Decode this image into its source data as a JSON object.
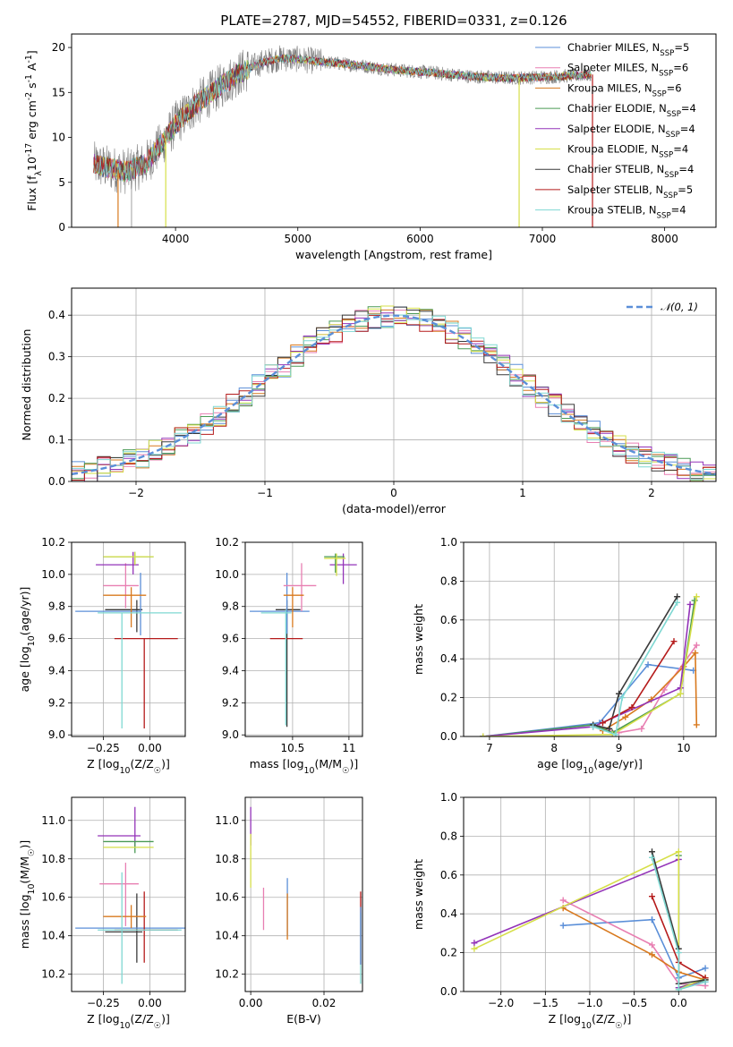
{
  "chart_data": [
    {
      "id": "spectrum",
      "type": "line",
      "title": "PLATE=2787, MJD=54552, FIBERID=0331, z=0.126",
      "xlabel": "wavelength [Angstrom, rest frame]",
      "ylabel": "Flux [f$_\\lambda$10$^{-17}$ erg cm$^{-2}$ s$^{-1}$ A$^{-1}$]",
      "xlim": [
        3150,
        8420
      ],
      "ylim": [
        0,
        21.5
      ],
      "xticks": [
        4000,
        5000,
        6000,
        7000,
        8000
      ],
      "yticks": [
        0,
        5,
        10,
        15,
        20
      ],
      "grid": false,
      "legend_position": "upper right",
      "continuum_profile": {
        "x": [
          3330,
          3450,
          3600,
          3750,
          3900,
          4000,
          4150,
          4300,
          4500,
          4700,
          4850,
          5000,
          5200,
          5500,
          5800,
          6100,
          6400,
          6700,
          7000,
          7300,
          7400
        ],
        "y": [
          7.0,
          6.6,
          6.2,
          7.0,
          9.5,
          11.5,
          13.5,
          15.0,
          17.0,
          18.3,
          18.8,
          18.7,
          18.4,
          18.0,
          17.5,
          17.2,
          16.8,
          16.6,
          16.7,
          16.9,
          17.0
        ]
      },
      "series": [
        {
          "name": "Chabrier MILES, N$_{SSP}$=5",
          "color": "#5b8fd8"
        },
        {
          "name": "Salpeter MILES, N$_{SSP}$=6",
          "color": "#e87fb2"
        },
        {
          "name": "Kroupa MILES, N$_{SSP}$=6",
          "color": "#d8791e"
        },
        {
          "name": "Chabrier ELODIE, N$_{SSP}$=4",
          "color": "#4a9a55"
        },
        {
          "name": "Salpeter ELODIE, N$_{SSP}$=4",
          "color": "#9333b8"
        },
        {
          "name": "Kroupa ELODIE, N$_{SSP}$=4",
          "color": "#d6df49"
        },
        {
          "name": "Chabrier STELIB, N$_{SSP}$=4",
          "color": "#3a3a3a"
        },
        {
          "name": "Salpeter STELIB, N$_{SSP}$=5",
          "color": "#b51b1b"
        },
        {
          "name": "Kroupa STELIB, N$_{SSP}$=4",
          "color": "#7fd8d2"
        }
      ],
      "data_color": "#7f7f7f",
      "drop_lines": [
        {
          "x": 3530,
          "color": "#d8791e"
        },
        {
          "x": 3640,
          "color": "#b0b0b0"
        },
        {
          "x": 3920,
          "color": "#d6df49"
        },
        {
          "x": 6810,
          "color": "#d6df49"
        },
        {
          "x": 7410,
          "color": "#b51b1b"
        }
      ]
    },
    {
      "id": "residuals",
      "type": "line",
      "xlabel": "(data-model)/error",
      "ylabel": "Normed distribution",
      "xlim": [
        -2.5,
        2.5
      ],
      "ylim": [
        0,
        0.465
      ],
      "xticks": [
        -2,
        -1,
        0,
        1,
        2
      ],
      "yticks": [
        0.0,
        0.1,
        0.2,
        0.3,
        0.4
      ],
      "grid": true,
      "legend": "$\\mathcal{N}(0, 1)$",
      "legend_position": "upper right",
      "gaussian": {
        "mean": 0,
        "sigma": 1,
        "color": "#5b8fd8"
      },
      "histogram": {
        "bin_start": -2.5,
        "bin_width": 0.1,
        "jitter": 0.028
      }
    },
    {
      "id": "age-vs-Z",
      "type": "scatter",
      "xlabel": "Z [log$_{10}$(Z/Z$_\\odot$)]",
      "ylabel": "age  [log$_{10}$(age/yr)]",
      "xlim": [
        -0.42,
        0.19
      ],
      "ylim": [
        8.99,
        10.2
      ],
      "xticks": [
        -0.25,
        0.0
      ],
      "xticklabels": [
        "−0.25",
        "0.00"
      ],
      "yticks": [
        9.0,
        9.2,
        9.4,
        9.6,
        9.8,
        10.0,
        10.2
      ],
      "grid": true,
      "points": [
        {
          "x": -0.07,
          "y": 9.78,
          "xerr": [
            0.17,
            0.03
          ],
          "yerr": [
            0.14,
            0.06
          ],
          "color": "#3a3a3a"
        },
        {
          "x": -0.05,
          "y": 9.77,
          "xerr": [
            0.35,
            0.0
          ],
          "yerr": [
            0.15,
            0.24
          ],
          "color": "#5b8fd8"
        },
        {
          "x": -0.03,
          "y": 9.6,
          "xerr": [
            0.16,
            0.18
          ],
          "yerr": [
            0.56,
            0.0
          ],
          "color": "#b51b1b"
        },
        {
          "x": -0.13,
          "y": 9.93,
          "xerr": [
            0.12,
            0.07
          ],
          "yerr": [
            0.14,
            0.14
          ],
          "color": "#e87fb2"
        },
        {
          "x": -0.1,
          "y": 9.87,
          "xerr": [
            0.15,
            0.08
          ],
          "yerr": [
            0.2,
            0.05
          ],
          "color": "#d8791e"
        },
        {
          "x": -0.09,
          "y": 10.06,
          "xerr": [
            0.2,
            0.03
          ],
          "yerr": [
            0.06,
            0.08
          ],
          "color": "#9333b8"
        },
        {
          "x": -0.08,
          "y": 10.11,
          "xerr": [
            0.17,
            0.1
          ],
          "yerr": [
            0.05,
            0.03
          ],
          "color": "#4a9a55"
        },
        {
          "x": -0.08,
          "y": 10.11,
          "xerr": [
            0.17,
            0.1
          ],
          "yerr": [
            0.05,
            0.03
          ],
          "color": "#d6df49"
        },
        {
          "x": -0.15,
          "y": 9.76,
          "xerr": [
            0.13,
            0.32
          ],
          "yerr": [
            0.72,
            0.0
          ],
          "color": "#7fd8d2"
        }
      ]
    },
    {
      "id": "age-vs-mass",
      "type": "scatter",
      "xlabel": "mass [log$_{10}$(M/M$_\\odot$)]",
      "ylabel": "",
      "xlim": [
        10.08,
        11.12
      ],
      "ylim": [
        8.99,
        10.2
      ],
      "xticks": [
        10.5,
        11.0
      ],
      "yticks": [
        9.0,
        9.2,
        9.4,
        9.6,
        9.8,
        10.0,
        10.2
      ],
      "grid": true,
      "points": [
        {
          "x": 10.45,
          "y": 9.78,
          "xerr": [
            0.1,
            0.12
          ],
          "yerr": [
            0.73,
            0.06
          ],
          "color": "#3a3a3a"
        },
        {
          "x": 10.45,
          "y": 9.77,
          "xerr": [
            0.33,
            0.2
          ],
          "yerr": [
            0.14,
            0.24
          ],
          "color": "#5b8fd8"
        },
        {
          "x": 10.44,
          "y": 9.6,
          "xerr": [
            0.14,
            0.15
          ],
          "yerr": [
            0.0,
            0.0
          ],
          "color": "#b51b1b"
        },
        {
          "x": 10.58,
          "y": 9.93,
          "xerr": [
            0.16,
            0.13
          ],
          "yerr": [
            0.16,
            0.14
          ],
          "color": "#e87fb2"
        },
        {
          "x": 10.5,
          "y": 9.87,
          "xerr": [
            0.08,
            0.1
          ],
          "yerr": [
            0.2,
            0.05
          ],
          "color": "#d8791e"
        },
        {
          "x": 10.95,
          "y": 10.06,
          "xerr": [
            0.12,
            0.12
          ],
          "yerr": [
            0.12,
            0.07
          ],
          "color": "#9333b8"
        },
        {
          "x": 10.88,
          "y": 10.11,
          "xerr": [
            0.1,
            0.08
          ],
          "yerr": [
            0.1,
            0.02
          ],
          "color": "#4a9a55"
        },
        {
          "x": 10.89,
          "y": 10.1,
          "xerr": [
            0.11,
            0.08
          ],
          "yerr": [
            0.11,
            0.03
          ],
          "color": "#d6df49"
        },
        {
          "x": 10.44,
          "y": 9.76,
          "xerr": [
            0.22,
            0.05
          ],
          "yerr": [
            0.7,
            0.02
          ],
          "color": "#7fd8d2"
        }
      ]
    },
    {
      "id": "weight-vs-age",
      "type": "line",
      "xlabel": "age  [log$_{10}$(age/yr)]",
      "ylabel": "mass weight",
      "xlim": [
        6.6,
        10.5
      ],
      "ylim": [
        0,
        1.0
      ],
      "xticks": [
        7,
        8,
        9,
        10
      ],
      "yticks": [
        0.0,
        0.2,
        0.4,
        0.6,
        0.8,
        1.0
      ],
      "grid": true,
      "series": [
        {
          "color": "#5b8fd8",
          "x": [
            6.9,
            8.7,
            9.45,
            10.15
          ],
          "y": [
            0.0,
            0.07,
            0.37,
            0.34
          ]
        },
        {
          "color": "#e87fb2",
          "x": [
            8.7,
            9.0,
            9.35,
            9.7,
            10.2
          ],
          "y": [
            0.05,
            0.02,
            0.04,
            0.24,
            0.47
          ]
        },
        {
          "color": "#d8791e",
          "x": [
            8.75,
            9.1,
            9.5,
            10.0,
            10.18,
            10.2
          ],
          "y": [
            0.03,
            0.1,
            0.19,
            0.36,
            0.43,
            0.06
          ]
        },
        {
          "color": "#4a9a55",
          "x": [
            6.9,
            8.6,
            8.9,
            9.95,
            10.17
          ],
          "y": [
            0.0,
            0.06,
            0.02,
            0.22,
            0.7
          ]
        },
        {
          "color": "#9333b8",
          "x": [
            6.9,
            8.6,
            9.95,
            10.1
          ],
          "y": [
            0.0,
            0.05,
            0.25,
            0.68
          ]
        },
        {
          "color": "#d6df49",
          "x": [
            6.9,
            8.9,
            9.95,
            10.2
          ],
          "y": [
            0.0,
            0.01,
            0.22,
            0.72
          ]
        },
        {
          "color": "#3a3a3a",
          "x": [
            8.6,
            8.85,
            9.0,
            9.9
          ],
          "y": [
            0.06,
            0.04,
            0.22,
            0.72
          ]
        },
        {
          "color": "#b51b1b",
          "x": [
            8.75,
            9.2,
            9.85
          ],
          "y": [
            0.07,
            0.15,
            0.49
          ]
        },
        {
          "color": "#7fd8d2",
          "x": [
            8.6,
            8.95,
            9.05,
            9.9
          ],
          "y": [
            0.05,
            0.01,
            0.2,
            0.69
          ]
        }
      ]
    },
    {
      "id": "mass-vs-Z",
      "type": "scatter",
      "xlabel": "Z [log$_{10}$(Z/Z$_\\odot$)]",
      "ylabel": "mass [log$_{10}$(M/M$_\\odot$)]",
      "xlim": [
        -0.42,
        0.19
      ],
      "ylim": [
        10.11,
        11.12
      ],
      "xticks": [
        -0.25,
        0.0
      ],
      "xticklabels": [
        "−0.25",
        "0.00"
      ],
      "yticks": [
        10.2,
        10.4,
        10.6,
        10.8,
        11.0
      ],
      "grid": true,
      "points": [
        {
          "x": -0.07,
          "y": 10.42,
          "xerr": [
            0.17,
            0.03
          ],
          "yerr": [
            0.16,
            0.2
          ],
          "color": "#3a3a3a"
        },
        {
          "x": -0.05,
          "y": 10.44,
          "xerr": [
            0.35,
            0.3
          ],
          "yerr": [
            0.0,
            0.0
          ],
          "color": "#5b8fd8"
        },
        {
          "x": -0.03,
          "y": 10.43,
          "xerr": [
            0.16,
            0.18
          ],
          "yerr": [
            0.17,
            0.2
          ],
          "color": "#b51b1b"
        },
        {
          "x": -0.13,
          "y": 10.67,
          "xerr": [
            0.14,
            0.07
          ],
          "yerr": [
            0.22,
            0.11
          ],
          "color": "#e87fb2"
        },
        {
          "x": -0.1,
          "y": 10.5,
          "xerr": [
            0.15,
            0.08
          ],
          "yerr": [
            0.06,
            0.06
          ],
          "color": "#d8791e"
        },
        {
          "x": -0.08,
          "y": 10.92,
          "xerr": [
            0.2,
            0.03
          ],
          "yerr": [
            0.06,
            0.15
          ],
          "color": "#9333b8"
        },
        {
          "x": -0.08,
          "y": 10.89,
          "xerr": [
            0.17,
            0.1
          ],
          "yerr": [
            0.06,
            0.0
          ],
          "color": "#4a9a55"
        },
        {
          "x": -0.08,
          "y": 10.86,
          "xerr": [
            0.17,
            0.1
          ],
          "yerr": [
            0.0,
            0.0
          ],
          "color": "#d6df49"
        },
        {
          "x": -0.15,
          "y": 10.43,
          "xerr": [
            0.13,
            0.32
          ],
          "yerr": [
            0.28,
            0.3
          ],
          "color": "#7fd8d2"
        }
      ]
    },
    {
      "id": "mass-vs-EBV",
      "type": "scatter",
      "xlabel": "E(B-V)",
      "ylabel": "",
      "xlim": [
        -0.0015,
        0.0305
      ],
      "ylim": [
        10.11,
        11.12
      ],
      "xticks": [
        0.0,
        0.02
      ],
      "xticklabels": [
        "0.00",
        "0.02"
      ],
      "yticks": [
        10.2,
        10.4,
        10.6,
        10.8,
        11.0
      ],
      "grid": true,
      "points": [
        {
          "x": 0.0,
          "y": 10.97,
          "yerr": [
            0.1,
            0.1
          ],
          "color": "#9333b8"
        },
        {
          "x": 0.0,
          "y": 10.8,
          "yerr": [
            0.15,
            0.13
          ],
          "color": "#d6df49"
        },
        {
          "x": 0.0035,
          "y": 10.55,
          "yerr": [
            0.12,
            0.1
          ],
          "color": "#e87fb2"
        },
        {
          "x": 0.01,
          "y": 10.55,
          "yerr": [
            0.15,
            0.15
          ],
          "color": "#5b8fd8"
        },
        {
          "x": 0.01,
          "y": 10.5,
          "yerr": [
            0.12,
            0.12
          ],
          "color": "#d8791e"
        },
        {
          "x": 0.03,
          "y": 10.45,
          "yerr": [
            0.2,
            0.18
          ],
          "color": "#b51b1b"
        },
        {
          "x": 0.03,
          "y": 10.3,
          "yerr": [
            0.15,
            0.22
          ],
          "color": "#7fd8d2"
        },
        {
          "x": 0.03,
          "y": 10.4,
          "yerr": [
            0.15,
            0.15
          ],
          "color": "#5b8fd8"
        }
      ]
    },
    {
      "id": "weight-vs-Z",
      "type": "line",
      "xlabel": "Z [log$_{10}$(Z/Z$_\\odot$)]",
      "ylabel": "mass weight",
      "xlim": [
        -2.42,
        0.42
      ],
      "ylim": [
        0,
        1.0
      ],
      "xticks": [
        -2.0,
        -1.5,
        -1.0,
        -0.5,
        0.0
      ],
      "xticklabels": [
        "−2.0",
        "−1.5",
        "−1.0",
        "−0.5",
        "0.0"
      ],
      "yticks": [
        0.0,
        0.2,
        0.4,
        0.6,
        0.8,
        1.0
      ],
      "grid": true,
      "series": [
        {
          "color": "#5b8fd8",
          "x": [
            -1.3,
            -0.3,
            -0.3,
            0.0,
            0.3
          ],
          "y": [
            0.34,
            0.37,
            0.37,
            0.07,
            0.12
          ]
        },
        {
          "color": "#e87fb2",
          "x": [
            -1.3,
            -0.3,
            0.0,
            0.3
          ],
          "y": [
            0.47,
            0.24,
            0.04,
            0.03
          ]
        },
        {
          "color": "#d8791e",
          "x": [
            -1.3,
            -0.3,
            0.0,
            0.3
          ],
          "y": [
            0.43,
            0.19,
            0.1,
            0.06
          ]
        },
        {
          "color": "#4a9a55",
          "x": [
            0.0,
            0.0,
            0.3
          ],
          "y": [
            0.7,
            0.02,
            0.06
          ]
        },
        {
          "color": "#9333b8",
          "x": [
            -2.3,
            0.0,
            0.0,
            0.3
          ],
          "y": [
            0.25,
            0.68,
            0.02,
            0.05
          ]
        },
        {
          "color": "#d6df49",
          "x": [
            -2.3,
            0.0,
            0.0,
            0.3
          ],
          "y": [
            0.22,
            0.72,
            0.01,
            0.07
          ]
        },
        {
          "color": "#3a3a3a",
          "x": [
            -0.3,
            0.0,
            0.0,
            0.3
          ],
          "y": [
            0.72,
            0.22,
            0.04,
            0.06
          ]
        },
        {
          "color": "#b51b1b",
          "x": [
            -0.3,
            0.0,
            0.3
          ],
          "y": [
            0.49,
            0.15,
            0.07
          ]
        },
        {
          "color": "#7fd8d2",
          "x": [
            -0.3,
            0.0,
            0.0,
            0.3
          ],
          "y": [
            0.69,
            0.2,
            0.01,
            0.05
          ]
        }
      ]
    }
  ]
}
